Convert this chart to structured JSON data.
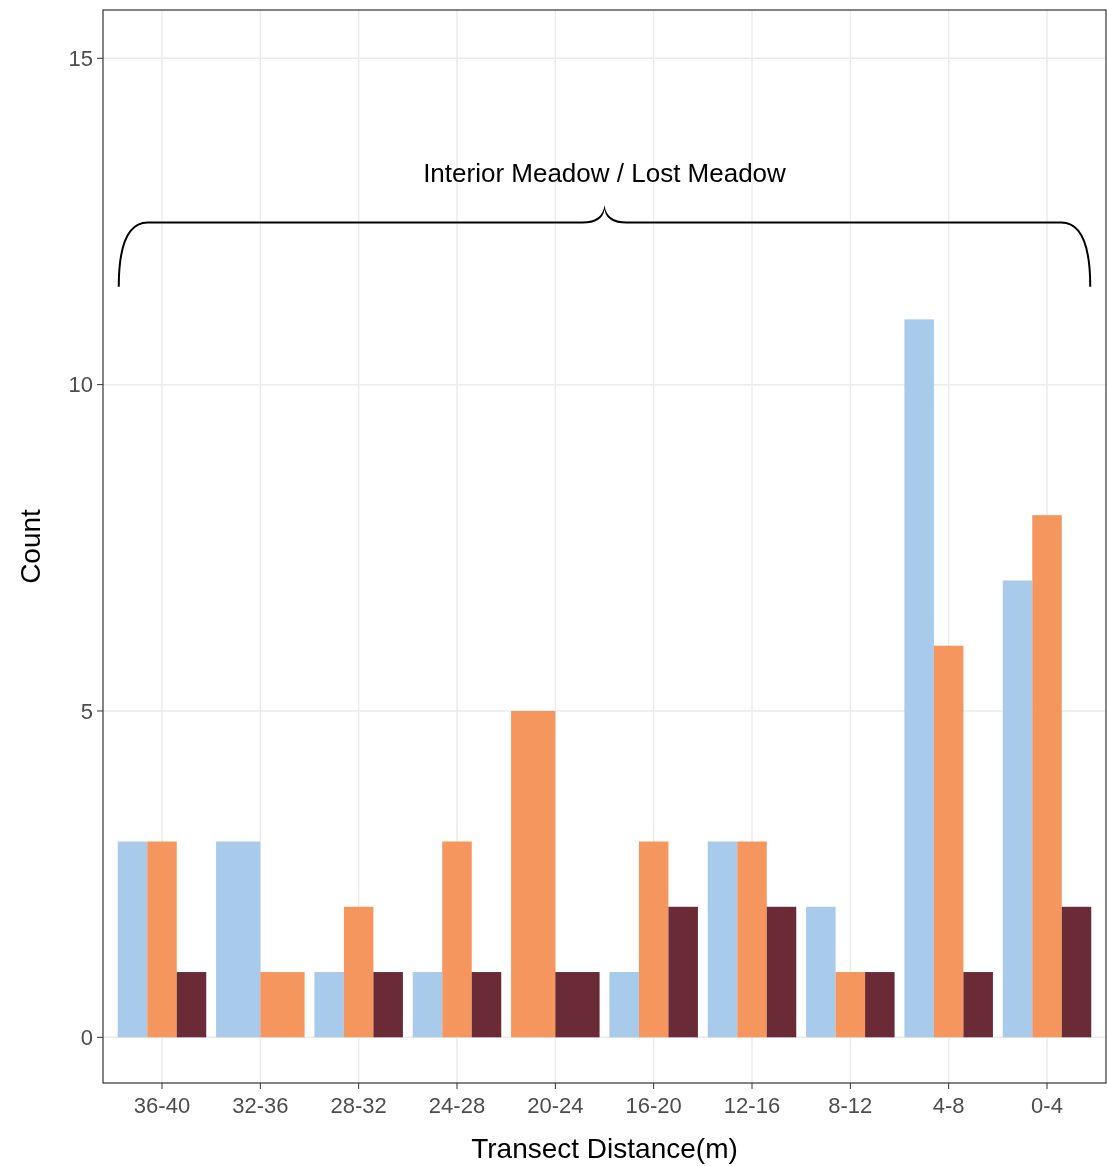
{
  "chart_data": {
    "type": "bar",
    "xlabel": "Transect Distance(m)",
    "ylabel": "Count",
    "annotations": [
      "Interior Meadow / Lost Meadow"
    ],
    "categories": [
      "36-40",
      "32-36",
      "28-32",
      "24-28",
      "20-24",
      "16-20",
      "12-16",
      "8-12",
      "4-8",
      "0-4"
    ],
    "series": [
      {
        "color": "#a8cbeb",
        "values": [
          3,
          3,
          1,
          1,
          null,
          1,
          3,
          2,
          11,
          7
        ]
      },
      {
        "color": "#f4965e",
        "values": [
          3,
          1,
          2,
          3,
          5,
          3,
          3,
          1,
          6,
          8
        ]
      },
      {
        "color": "#6a2a36",
        "values": [
          1,
          null,
          1,
          1,
          1,
          2,
          2,
          1,
          1,
          2
        ]
      }
    ],
    "ylim": [
      -0.7,
      15.74
    ],
    "yticks": [
      0,
      5,
      10,
      15
    ],
    "grid": true
  }
}
